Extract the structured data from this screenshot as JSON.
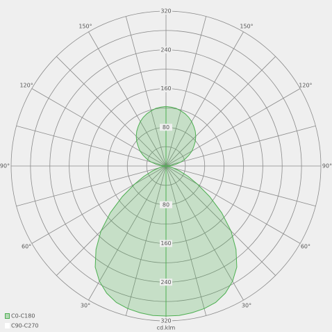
{
  "chart_data": {
    "type": "polar",
    "r_label": "cd.klm",
    "rlim": [
      0,
      320
    ],
    "rgrid": [
      40,
      80,
      120,
      160,
      200,
      240,
      280,
      320
    ],
    "rticks": [
      80,
      160,
      240,
      320
    ],
    "theta_grid_step": 15,
    "theta_ticks": [
      {
        "value": 30,
        "label": "30°"
      },
      {
        "value": 60,
        "label": "60°"
      },
      {
        "value": 90,
        "label": "90°"
      },
      {
        "value": 120,
        "label": "120°"
      },
      {
        "value": 150,
        "label": "150°"
      }
    ],
    "angles": [
      0,
      5,
      10,
      15,
      20,
      25,
      30,
      35,
      40,
      45,
      50,
      55,
      60,
      65,
      70,
      75,
      80,
      85,
      90,
      95,
      100,
      105,
      110,
      115,
      120,
      125,
      130,
      135,
      140,
      145,
      150,
      155,
      160,
      165,
      170,
      175,
      180
    ],
    "series": [
      {
        "name": "C0-C180",
        "color": "#4caf50",
        "values": [
          310,
          310,
          308,
          305,
          300,
          290,
          275,
          255,
          225,
          190,
          150,
          110,
          75,
          50,
          30,
          15,
          8,
          3,
          0,
          11,
          21,
          32,
          42,
          52,
          62,
          70,
          79,
          87,
          94,
          100,
          106,
          111,
          115,
          118,
          121,
          122,
          123
        ]
      },
      {
        "name": "C90-C270",
        "color": "#ffffff"
      }
    ]
  }
}
